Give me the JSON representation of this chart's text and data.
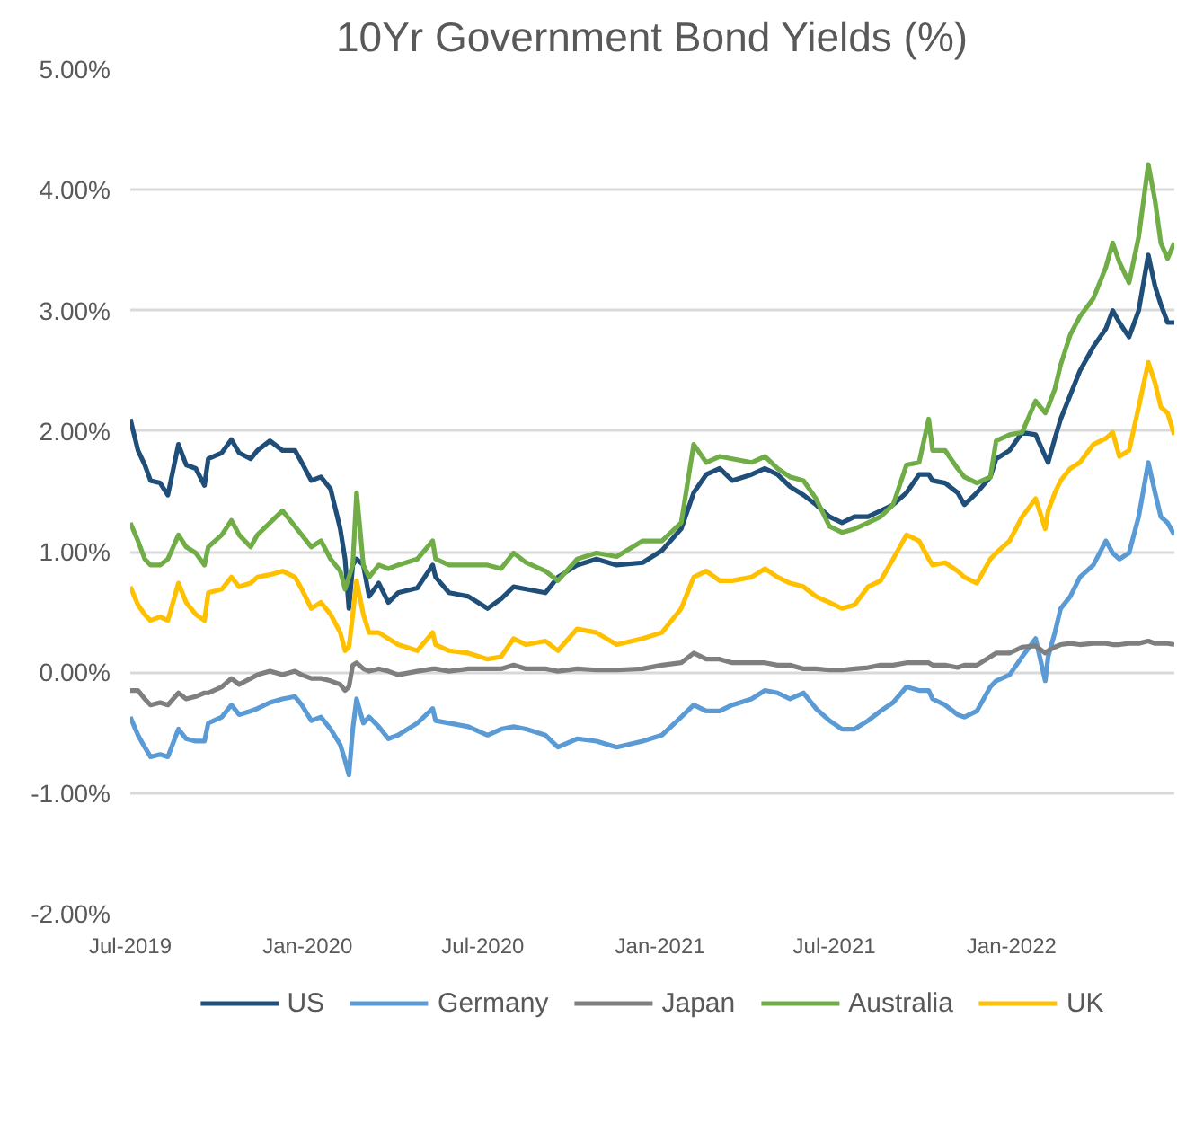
{
  "chart_data": {
    "type": "line",
    "title": "10Yr Government Bond Yields (%)",
    "x": [
      "2019-07-01",
      "2019-07-09",
      "2019-07-16",
      "2019-07-22",
      "2019-08-01",
      "2019-08-09",
      "2019-08-20",
      "2019-08-28",
      "2019-09-07",
      "2019-09-16",
      "2019-09-20",
      "2019-10-04",
      "2019-10-14",
      "2019-10-22",
      "2019-11-03",
      "2019-11-10",
      "2019-11-23",
      "2019-12-06",
      "2019-12-19",
      "2019-12-26",
      "2020-01-05",
      "2020-01-15",
      "2020-01-25",
      "2020-02-04",
      "2020-02-09",
      "2020-02-13",
      "2020-02-17",
      "2020-02-21",
      "2020-02-28",
      "2020-03-05",
      "2020-03-15",
      "2020-03-25",
      "2020-04-04",
      "2020-04-24",
      "2020-05-10",
      "2020-05-13",
      "2020-05-27",
      "2020-06-16",
      "2020-07-06",
      "2020-07-20",
      "2020-08-02",
      "2020-08-15",
      "2020-09-04",
      "2020-09-17",
      "2020-10-07",
      "2020-10-27",
      "2020-11-17",
      "2020-12-14",
      "2021-01-03",
      "2021-01-23",
      "2021-02-05",
      "2021-02-18",
      "2021-03-04",
      "2021-03-17",
      "2021-04-06",
      "2021-04-20",
      "2021-05-03",
      "2021-05-16",
      "2021-05-30",
      "2021-06-12",
      "2021-06-26",
      "2021-07-09",
      "2021-07-22",
      "2021-08-05",
      "2021-08-18",
      "2021-08-31",
      "2021-09-14",
      "2021-09-27",
      "2021-10-07",
      "2021-10-11",
      "2021-10-24",
      "2021-11-06",
      "2021-11-13",
      "2021-11-26",
      "2021-12-10",
      "2021-12-16",
      "2021-12-30",
      "2022-01-12",
      "2022-01-26",
      "2022-02-05",
      "2022-02-08",
      "2022-02-15",
      "2022-02-21",
      "2022-03-03",
      "2022-03-13",
      "2022-03-27",
      "2022-04-09",
      "2022-04-16",
      "2022-04-23",
      "2022-05-03",
      "2022-05-13",
      "2022-05-23",
      "2022-05-30",
      "2022-06-05",
      "2022-06-12",
      "2022-06-19"
    ],
    "series": [
      {
        "name": "US",
        "color": "#1f4e79",
        "values": [
          2.1,
          1.84,
          1.72,
          1.59,
          1.57,
          1.47,
          1.89,
          1.72,
          1.69,
          1.55,
          1.77,
          1.82,
          1.93,
          1.82,
          1.77,
          1.84,
          1.92,
          1.84,
          1.84,
          1.74,
          1.59,
          1.62,
          1.52,
          1.19,
          0.94,
          0.53,
          0.89,
          0.94,
          0.89,
          0.63,
          0.74,
          0.58,
          0.66,
          0.7,
          0.89,
          0.79,
          0.66,
          0.63,
          0.53,
          0.61,
          0.71,
          0.69,
          0.66,
          0.79,
          0.89,
          0.94,
          0.89,
          0.91,
          1.01,
          1.19,
          1.49,
          1.64,
          1.69,
          1.59,
          1.64,
          1.69,
          1.64,
          1.54,
          1.47,
          1.39,
          1.29,
          1.24,
          1.29,
          1.29,
          1.34,
          1.39,
          1.49,
          1.64,
          1.64,
          1.59,
          1.57,
          1.49,
          1.39,
          1.49,
          1.62,
          1.77,
          1.84,
          1.99,
          1.97,
          1.79,
          1.74,
          1.94,
          2.1,
          2.3,
          2.5,
          2.7,
          2.85,
          3.0,
          2.9,
          2.78,
          3.0,
          3.46,
          3.2,
          3.05,
          2.9,
          2.9
        ]
      },
      {
        "name": "Germany",
        "color": "#5b9bd5",
        "values": [
          -0.37,
          -0.52,
          -0.62,
          -0.7,
          -0.68,
          -0.7,
          -0.47,
          -0.55,
          -0.57,
          -0.57,
          -0.42,
          -0.37,
          -0.27,
          -0.35,
          -0.32,
          -0.3,
          -0.25,
          -0.22,
          -0.2,
          -0.27,
          -0.4,
          -0.37,
          -0.47,
          -0.6,
          -0.73,
          -0.85,
          -0.47,
          -0.22,
          -0.42,
          -0.37,
          -0.45,
          -0.55,
          -0.52,
          -0.42,
          -0.3,
          -0.4,
          -0.42,
          -0.45,
          -0.52,
          -0.47,
          -0.45,
          -0.47,
          -0.52,
          -0.62,
          -0.55,
          -0.57,
          -0.62,
          -0.57,
          -0.52,
          -0.37,
          -0.27,
          -0.32,
          -0.32,
          -0.27,
          -0.22,
          -0.15,
          -0.17,
          -0.22,
          -0.17,
          -0.3,
          -0.4,
          -0.47,
          -0.47,
          -0.4,
          -0.32,
          -0.25,
          -0.12,
          -0.15,
          -0.15,
          -0.22,
          -0.27,
          -0.35,
          -0.37,
          -0.32,
          -0.12,
          -0.07,
          -0.02,
          0.13,
          0.28,
          -0.07,
          0.13,
          0.33,
          0.53,
          0.63,
          0.79,
          0.89,
          1.09,
          0.99,
          0.94,
          0.99,
          1.29,
          1.74,
          1.49,
          1.29,
          1.24,
          1.14
        ]
      },
      {
        "name": "Japan",
        "color": "#7f7f7f",
        "values": [
          -0.15,
          -0.15,
          -0.22,
          -0.27,
          -0.25,
          -0.27,
          -0.17,
          -0.22,
          -0.2,
          -0.17,
          -0.17,
          -0.12,
          -0.05,
          -0.1,
          -0.05,
          -0.02,
          0.01,
          -0.02,
          0.01,
          -0.02,
          -0.05,
          -0.05,
          -0.07,
          -0.1,
          -0.15,
          -0.12,
          0.06,
          0.08,
          0.03,
          0.01,
          0.03,
          0.01,
          -0.02,
          0.01,
          0.03,
          0.03,
          0.01,
          0.03,
          0.03,
          0.03,
          0.06,
          0.03,
          0.03,
          0.01,
          0.03,
          0.02,
          0.02,
          0.03,
          0.06,
          0.08,
          0.16,
          0.11,
          0.11,
          0.08,
          0.08,
          0.08,
          0.06,
          0.06,
          0.03,
          0.03,
          0.02,
          0.02,
          0.03,
          0.04,
          0.06,
          0.06,
          0.08,
          0.08,
          0.08,
          0.06,
          0.06,
          0.04,
          0.06,
          0.06,
          0.13,
          0.16,
          0.16,
          0.21,
          0.22,
          0.16,
          0.18,
          0.21,
          0.23,
          0.24,
          0.23,
          0.24,
          0.24,
          0.23,
          0.23,
          0.24,
          0.24,
          0.26,
          0.24,
          0.24,
          0.24,
          0.23
        ]
      },
      {
        "name": "Australia",
        "color": "#70ad47",
        "values": [
          1.24,
          1.09,
          0.94,
          0.89,
          0.89,
          0.94,
          1.14,
          1.04,
          0.99,
          0.89,
          1.04,
          1.14,
          1.26,
          1.14,
          1.04,
          1.14,
          1.24,
          1.34,
          1.21,
          1.14,
          1.04,
          1.09,
          0.94,
          0.84,
          0.69,
          0.79,
          0.89,
          1.49,
          0.89,
          0.79,
          0.89,
          0.86,
          0.89,
          0.94,
          1.09,
          0.94,
          0.89,
          0.89,
          0.89,
          0.86,
          0.99,
          0.91,
          0.84,
          0.76,
          0.94,
          0.99,
          0.96,
          1.09,
          1.09,
          1.24,
          1.89,
          1.74,
          1.79,
          1.77,
          1.74,
          1.79,
          1.69,
          1.62,
          1.59,
          1.44,
          1.21,
          1.16,
          1.19,
          1.24,
          1.29,
          1.39,
          1.72,
          1.74,
          2.1,
          1.84,
          1.84,
          1.69,
          1.62,
          1.57,
          1.62,
          1.92,
          1.97,
          1.99,
          2.25,
          2.15,
          2.2,
          2.35,
          2.55,
          2.8,
          2.95,
          3.1,
          3.36,
          3.56,
          3.4,
          3.23,
          3.61,
          4.21,
          3.91,
          3.56,
          3.43,
          3.56
        ]
      },
      {
        "name": "UK",
        "color": "#ffc000",
        "values": [
          0.71,
          0.56,
          0.48,
          0.43,
          0.46,
          0.43,
          0.74,
          0.58,
          0.48,
          0.43,
          0.66,
          0.69,
          0.79,
          0.71,
          0.74,
          0.79,
          0.81,
          0.84,
          0.79,
          0.69,
          0.53,
          0.58,
          0.48,
          0.33,
          0.18,
          0.21,
          0.48,
          0.76,
          0.48,
          0.33,
          0.33,
          0.28,
          0.23,
          0.18,
          0.33,
          0.23,
          0.18,
          0.16,
          0.11,
          0.13,
          0.28,
          0.23,
          0.26,
          0.18,
          0.36,
          0.33,
          0.23,
          0.28,
          0.33,
          0.53,
          0.79,
          0.84,
          0.76,
          0.76,
          0.79,
          0.86,
          0.79,
          0.74,
          0.71,
          0.63,
          0.58,
          0.53,
          0.56,
          0.71,
          0.76,
          0.94,
          1.14,
          1.09,
          0.94,
          0.89,
          0.91,
          0.84,
          0.79,
          0.74,
          0.94,
          0.99,
          1.09,
          1.29,
          1.44,
          1.19,
          1.34,
          1.49,
          1.59,
          1.69,
          1.74,
          1.89,
          1.94,
          1.99,
          1.79,
          1.84,
          2.2,
          2.57,
          2.4,
          2.2,
          2.15,
          1.97
        ]
      }
    ],
    "xlim": [
      "2019-07-01",
      "2022-06-19"
    ],
    "xticks": [
      {
        "value": "2019-07-01",
        "label": "Jul-2019"
      },
      {
        "value": "2020-01-01",
        "label": "Jan-2020"
      },
      {
        "value": "2020-07-01",
        "label": "Jul-2020"
      },
      {
        "value": "2021-01-01",
        "label": "Jan-2021"
      },
      {
        "value": "2021-07-01",
        "label": "Jul-2021"
      },
      {
        "value": "2022-01-01",
        "label": "Jan-2022"
      }
    ],
    "ylim": [
      -2,
      5
    ],
    "yticks": [
      {
        "value": -2,
        "label": "-2.00%"
      },
      {
        "value": -1,
        "label": "-1.00%"
      },
      {
        "value": 0,
        "label": "0.00%"
      },
      {
        "value": 1,
        "label": "1.00%"
      },
      {
        "value": 2,
        "label": "2.00%"
      },
      {
        "value": 3,
        "label": "3.00%"
      },
      {
        "value": 4,
        "label": "4.00%"
      },
      {
        "value": 5,
        "label": "5.00%"
      }
    ],
    "grid": "y",
    "legend": "bottom",
    "line_style": "solid"
  }
}
